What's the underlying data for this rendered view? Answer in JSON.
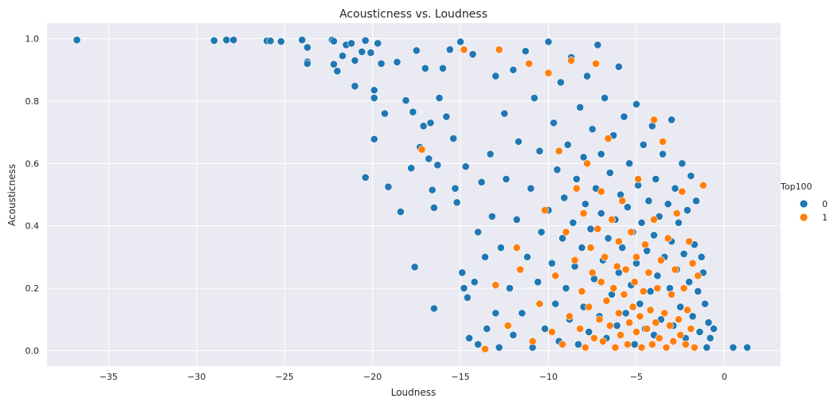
{
  "chart_data": {
    "type": "scatter",
    "title": "Acousticness vs. Loudness",
    "xlabel": "Loudness",
    "ylabel": "Acousticness",
    "xlim": [
      -38.5,
      3.2
    ],
    "ylim": [
      -0.05,
      1.05
    ],
    "xticks": [
      -35,
      -30,
      -25,
      -20,
      -15,
      -10,
      -5,
      0
    ],
    "yticks": [
      0.0,
      0.2,
      0.4,
      0.6,
      0.8,
      1.0
    ],
    "xtick_labels": [
      "−35",
      "−30",
      "−25",
      "−20",
      "−15",
      "−10",
      "−5",
      "0"
    ],
    "ytick_labels": [
      "0.0",
      "0.2",
      "0.4",
      "0.6",
      "0.8",
      "1.0"
    ],
    "grid": true,
    "legend": {
      "title": "Top100",
      "placement": "right",
      "entries": [
        {
          "label": "0",
          "color": "#1f77b4"
        },
        {
          "label": "1",
          "color": "#ff7f0e"
        }
      ]
    },
    "series": [
      {
        "legend_label": "0",
        "color": "#1f77b4",
        "points": [
          [
            -36.8,
            0.996
          ],
          [
            -29.0,
            0.994
          ],
          [
            -28.3,
            0.996
          ],
          [
            -27.9,
            0.996
          ],
          [
            -26.0,
            0.993
          ],
          [
            -25.8,
            0.993
          ],
          [
            -25.2,
            0.991
          ],
          [
            -24.0,
            0.996
          ],
          [
            -23.7,
            0.972
          ],
          [
            -23.7,
            0.926
          ],
          [
            -23.7,
            0.92
          ],
          [
            -22.3,
            0.996
          ],
          [
            -22.2,
            0.992
          ],
          [
            -22.2,
            0.918
          ],
          [
            -22.0,
            0.896
          ],
          [
            -21.7,
            0.945
          ],
          [
            -21.5,
            0.98
          ],
          [
            -21.2,
            0.985
          ],
          [
            -21.0,
            0.93
          ],
          [
            -21.0,
            0.848
          ],
          [
            -20.6,
            0.958
          ],
          [
            -20.4,
            0.994
          ],
          [
            -20.4,
            0.555
          ],
          [
            -20.1,
            0.955
          ],
          [
            -19.9,
            0.835
          ],
          [
            -19.9,
            0.81
          ],
          [
            -19.9,
            0.678
          ],
          [
            -19.7,
            0.985
          ],
          [
            -19.5,
            0.92
          ],
          [
            -19.3,
            0.76
          ],
          [
            -19.1,
            0.525
          ],
          [
            -18.6,
            0.925
          ],
          [
            -18.4,
            0.445
          ],
          [
            -18.1,
            0.802
          ],
          [
            -17.8,
            0.585
          ],
          [
            -17.7,
            0.765
          ],
          [
            -17.6,
            0.268
          ],
          [
            -17.5,
            0.962
          ],
          [
            -17.3,
            0.652
          ],
          [
            -17.1,
            0.72
          ],
          [
            -17.0,
            0.905
          ],
          [
            -16.8,
            0.615
          ],
          [
            -16.7,
            0.73
          ],
          [
            -16.6,
            0.515
          ],
          [
            -16.5,
            0.458
          ],
          [
            -16.5,
            0.135
          ],
          [
            -16.3,
            0.595
          ],
          [
            -16.2,
            0.81
          ],
          [
            -16.0,
            0.905
          ],
          [
            -15.8,
            0.75
          ],
          [
            -15.6,
            0.965
          ],
          [
            -15.4,
            0.68
          ],
          [
            -15.3,
            0.52
          ],
          [
            -15.2,
            0.475
          ],
          [
            -15.0,
            0.99
          ],
          [
            -14.9,
            0.25
          ],
          [
            -14.8,
            0.2
          ],
          [
            -14.7,
            0.59
          ],
          [
            -14.6,
            0.17
          ],
          [
            -14.5,
            0.04
          ],
          [
            -14.3,
            0.95
          ],
          [
            -14.2,
            0.22
          ],
          [
            -14.0,
            0.38
          ],
          [
            -14.0,
            0.02
          ],
          [
            -13.8,
            0.54
          ],
          [
            -13.6,
            0.3
          ],
          [
            -13.5,
            0.07
          ],
          [
            -13.3,
            0.63
          ],
          [
            -13.2,
            0.43
          ],
          [
            -13.0,
            0.88
          ],
          [
            -13.0,
            0.12
          ],
          [
            -12.8,
            0.01
          ],
          [
            -12.7,
            0.33
          ],
          [
            -12.5,
            0.76
          ],
          [
            -12.4,
            0.55
          ],
          [
            -12.2,
            0.2
          ],
          [
            -12.0,
            0.9
          ],
          [
            -12.0,
            0.05
          ],
          [
            -11.8,
            0.42
          ],
          [
            -11.7,
            0.67
          ],
          [
            -11.5,
            0.12
          ],
          [
            -11.3,
            0.96
          ],
          [
            -11.2,
            0.3
          ],
          [
            -11.0,
            0.52
          ],
          [
            -10.9,
            0.01
          ],
          [
            -10.8,
            0.81
          ],
          [
            -10.6,
            0.22
          ],
          [
            -10.5,
            0.64
          ],
          [
            -10.4,
            0.38
          ],
          [
            -10.2,
            0.07
          ],
          [
            -10.0,
            0.99
          ],
          [
            -10.0,
            0.45
          ],
          [
            -9.8,
            0.28
          ],
          [
            -9.7,
            0.73
          ],
          [
            -9.6,
            0.15
          ],
          [
            -9.5,
            0.58
          ],
          [
            -9.4,
            0.03
          ],
          [
            -9.3,
            0.86
          ],
          [
            -9.2,
            0.36
          ],
          [
            -9.1,
            0.49
          ],
          [
            -9.0,
            0.2
          ],
          [
            -8.9,
            0.66
          ],
          [
            -8.8,
            0.1
          ],
          [
            -8.7,
            0.94
          ],
          [
            -8.6,
            0.41
          ],
          [
            -8.5,
            0.27
          ],
          [
            -8.4,
            0.55
          ],
          [
            -8.3,
            0.02
          ],
          [
            -8.2,
            0.78
          ],
          [
            -8.1,
            0.33
          ],
          [
            -8.0,
            0.62
          ],
          [
            -8.0,
            0.14
          ],
          [
            -7.9,
            0.47
          ],
          [
            -7.8,
            0.88
          ],
          [
            -7.7,
            0.06
          ],
          [
            -7.6,
            0.39
          ],
          [
            -7.5,
            0.71
          ],
          [
            -7.4,
            0.23
          ],
          [
            -7.3,
            0.52
          ],
          [
            -7.2,
            0.98
          ],
          [
            -7.1,
            0.11
          ],
          [
            -7.0,
            0.44
          ],
          [
            -7.0,
            0.63
          ],
          [
            -6.9,
            0.29
          ],
          [
            -6.8,
            0.81
          ],
          [
            -6.7,
            0.04
          ],
          [
            -6.6,
            0.36
          ],
          [
            -6.5,
            0.57
          ],
          [
            -6.4,
            0.18
          ],
          [
            -6.3,
            0.69
          ],
          [
            -6.2,
            0.42
          ],
          [
            -6.1,
            0.08
          ],
          [
            -6.0,
            0.91
          ],
          [
            -6.0,
            0.25
          ],
          [
            -5.9,
            0.5
          ],
          [
            -5.8,
            0.33
          ],
          [
            -5.7,
            0.75
          ],
          [
            -5.6,
            0.12
          ],
          [
            -5.5,
            0.46
          ],
          [
            -5.4,
            0.6
          ],
          [
            -5.3,
            0.21
          ],
          [
            -5.2,
            0.38
          ],
          [
            -5.1,
            0.02
          ],
          [
            -5.0,
            0.79
          ],
          [
            -5.0,
            0.28
          ],
          [
            -4.9,
            0.53
          ],
          [
            -4.8,
            0.15
          ],
          [
            -4.7,
            0.41
          ],
          [
            -4.6,
            0.66
          ],
          [
            -4.5,
            0.07
          ],
          [
            -4.4,
            0.32
          ],
          [
            -4.3,
            0.48
          ],
          [
            -4.2,
            0.19
          ],
          [
            -4.1,
            0.72
          ],
          [
            -4.0,
            0.37
          ],
          [
            -4.0,
            0.05
          ],
          [
            -3.9,
            0.55
          ],
          [
            -3.8,
            0.24
          ],
          [
            -3.7,
            0.43
          ],
          [
            -3.6,
            0.1
          ],
          [
            -3.5,
            0.63
          ],
          [
            -3.4,
            0.3
          ],
          [
            -3.3,
            0.01
          ],
          [
            -3.2,
            0.47
          ],
          [
            -3.1,
            0.2
          ],
          [
            -3.0,
            0.74
          ],
          [
            -3.0,
            0.35
          ],
          [
            -2.9,
            0.08
          ],
          [
            -2.8,
            0.52
          ],
          [
            -2.7,
            0.26
          ],
          [
            -2.6,
            0.41
          ],
          [
            -2.5,
            0.14
          ],
          [
            -2.4,
            0.6
          ],
          [
            -2.3,
            0.31
          ],
          [
            -2.2,
            0.04
          ],
          [
            -2.1,
            0.45
          ],
          [
            -2.0,
            0.22
          ],
          [
            -1.9,
            0.56
          ],
          [
            -1.8,
            0.11
          ],
          [
            -1.7,
            0.34
          ],
          [
            -1.6,
            0.48
          ],
          [
            -1.5,
            0.19
          ],
          [
            -1.4,
            0.06
          ],
          [
            -1.3,
            0.3
          ],
          [
            -1.2,
            0.25
          ],
          [
            -1.1,
            0.15
          ],
          [
            -1.0,
            0.01
          ],
          [
            -0.9,
            0.09
          ],
          [
            -0.8,
            0.04
          ],
          [
            -0.6,
            0.07
          ],
          [
            0.5,
            0.01
          ],
          [
            1.3,
            0.01
          ]
        ]
      },
      {
        "legend_label": "1",
        "color": "#ff7f0e",
        "points": [
          [
            -17.2,
            0.645
          ],
          [
            -14.8,
            0.965
          ],
          [
            -13.6,
            0.005
          ],
          [
            -13.0,
            0.21
          ],
          [
            -12.8,
            0.965
          ],
          [
            -12.3,
            0.08
          ],
          [
            -11.8,
            0.33
          ],
          [
            -11.6,
            0.26
          ],
          [
            -11.1,
            0.92
          ],
          [
            -10.9,
            0.03
          ],
          [
            -10.5,
            0.15
          ],
          [
            -10.2,
            0.45
          ],
          [
            -10.0,
            0.89
          ],
          [
            -9.8,
            0.06
          ],
          [
            -9.6,
            0.24
          ],
          [
            -9.4,
            0.64
          ],
          [
            -9.2,
            0.02
          ],
          [
            -9.0,
            0.38
          ],
          [
            -8.8,
            0.11
          ],
          [
            -8.7,
            0.93
          ],
          [
            -8.5,
            0.29
          ],
          [
            -8.4,
            0.52
          ],
          [
            -8.2,
            0.07
          ],
          [
            -8.1,
            0.19
          ],
          [
            -8.0,
            0.44
          ],
          [
            -7.9,
            0.01
          ],
          [
            -7.8,
            0.6
          ],
          [
            -7.7,
            0.14
          ],
          [
            -7.6,
            0.33
          ],
          [
            -7.5,
            0.25
          ],
          [
            -7.4,
            0.04
          ],
          [
            -7.3,
            0.92
          ],
          [
            -7.2,
            0.39
          ],
          [
            -7.1,
            0.1
          ],
          [
            -7.0,
            0.22
          ],
          [
            -7.0,
            0.51
          ],
          [
            -6.9,
            0.03
          ],
          [
            -6.8,
            0.3
          ],
          [
            -6.7,
            0.16
          ],
          [
            -6.6,
            0.68
          ],
          [
            -6.5,
            0.08
          ],
          [
            -6.4,
            0.42
          ],
          [
            -6.3,
            0.2
          ],
          [
            -6.2,
            0.01
          ],
          [
            -6.1,
            0.27
          ],
          [
            -6.0,
            0.12
          ],
          [
            -6.0,
            0.35
          ],
          [
            -5.9,
            0.05
          ],
          [
            -5.8,
            0.48
          ],
          [
            -5.7,
            0.18
          ],
          [
            -5.6,
            0.26
          ],
          [
            -5.5,
            0.02
          ],
          [
            -5.4,
            0.09
          ],
          [
            -5.3,
            0.38
          ],
          [
            -5.2,
            0.14
          ],
          [
            -5.1,
            0.22
          ],
          [
            -5.0,
            0.06
          ],
          [
            -5.0,
            0.3
          ],
          [
            -4.9,
            0.55
          ],
          [
            -4.8,
            0.11
          ],
          [
            -4.7,
            0.01
          ],
          [
            -4.6,
            0.19
          ],
          [
            -4.5,
            0.34
          ],
          [
            -4.4,
            0.07
          ],
          [
            -4.3,
            0.25
          ],
          [
            -4.2,
            0.13
          ],
          [
            -4.1,
            0.02
          ],
          [
            -4.0,
            0.42
          ],
          [
            -4.0,
            0.74
          ],
          [
            -3.9,
            0.09
          ],
          [
            -3.8,
            0.2
          ],
          [
            -3.7,
            0.04
          ],
          [
            -3.6,
            0.29
          ],
          [
            -3.5,
            0.67
          ],
          [
            -3.4,
            0.12
          ],
          [
            -3.3,
            0.01
          ],
          [
            -3.2,
            0.36
          ],
          [
            -3.1,
            0.08
          ],
          [
            -3.0,
            0.18
          ],
          [
            -2.9,
            0.03
          ],
          [
            -2.8,
            0.26
          ],
          [
            -2.7,
            0.44
          ],
          [
            -2.6,
            0.1
          ],
          [
            -2.5,
            0.05
          ],
          [
            -2.4,
            0.51
          ],
          [
            -2.3,
            0.2
          ],
          [
            -2.2,
            0.02
          ],
          [
            -2.1,
            0.13
          ],
          [
            -2.0,
            0.35
          ],
          [
            -1.9,
            0.07
          ],
          [
            -1.8,
            0.28
          ],
          [
            -1.7,
            0.01
          ],
          [
            -1.5,
            0.24
          ],
          [
            -1.2,
            0.53
          ]
        ]
      }
    ]
  }
}
